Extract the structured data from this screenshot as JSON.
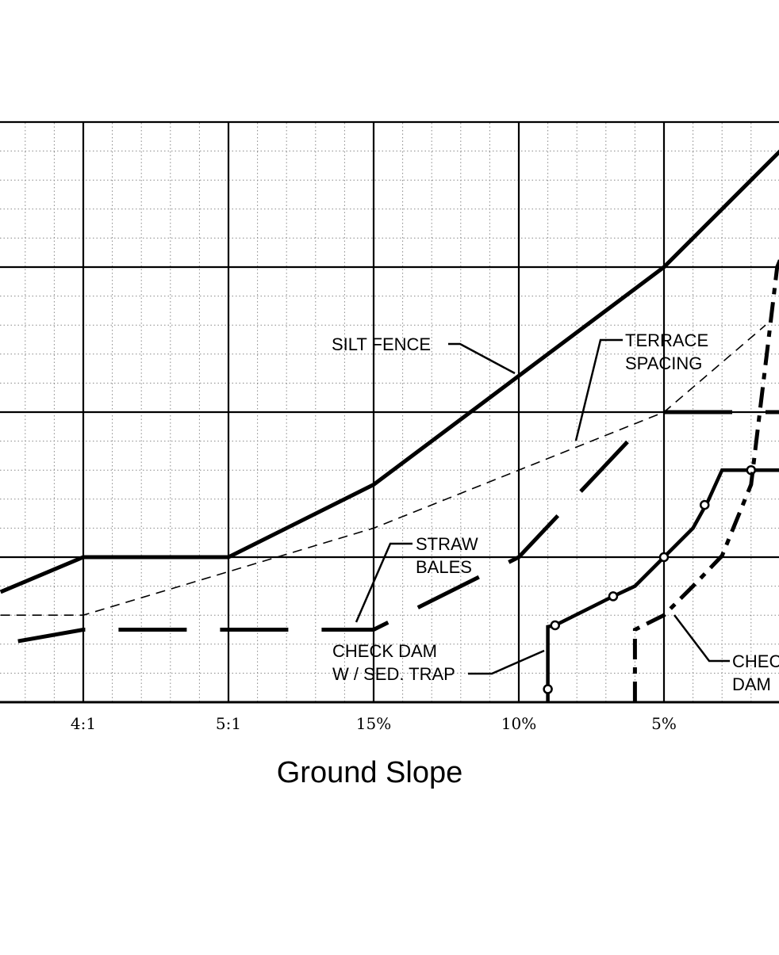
{
  "chart_data": {
    "type": "line",
    "xlabel": "Ground Slope",
    "ylabel": "",
    "categories": [
      "4:1",
      "5:1",
      "15%",
      "10%",
      "5%"
    ],
    "x_positions": [
      1,
      2,
      3,
      4,
      5
    ],
    "xlim": [
      0.43,
      5.8
    ],
    "ylim": [
      0,
      4
    ],
    "grid": true,
    "annotations": [
      {
        "name": "silt-fence",
        "lines": [
          "SILT FENCE"
        ]
      },
      {
        "name": "terrace-spacing",
        "lines": [
          "TERRACE",
          "SPACING"
        ]
      },
      {
        "name": "straw-bales",
        "lines": [
          "STRAW",
          "BALES"
        ]
      },
      {
        "name": "check-dam-sed-trap",
        "lines": [
          "CHECK DAM",
          "W / SED. TRAP"
        ]
      },
      {
        "name": "check-dam",
        "lines": [
          "CHEC",
          "DAM"
        ]
      }
    ],
    "series": [
      {
        "style": "solid-thick",
        "points": [
          [
            0.43,
            0.76
          ],
          [
            1,
            1
          ],
          [
            2,
            1
          ],
          [
            3,
            1.5
          ],
          [
            4,
            2.25
          ],
          [
            5,
            3
          ],
          [
            5.8,
            3.8
          ]
        ]
      },
      {
        "style": "dashed-thin",
        "points": [
          [
            0.43,
            0.6
          ],
          [
            1,
            0.6
          ],
          [
            3,
            1.2
          ],
          [
            5,
            2
          ],
          [
            5.7,
            2.6
          ]
        ]
      },
      {
        "style": "dashed-thick",
        "points": [
          [
            0.55,
            0.42
          ],
          [
            1,
            0.5
          ],
          [
            2,
            0.5
          ],
          [
            3,
            0.5
          ],
          [
            4,
            1
          ],
          [
            4.8,
            1.85
          ]
        ]
      },
      {
        "style": "dashed-thick",
        "points": [
          [
            5,
            2
          ],
          [
            5.8,
            2
          ]
        ]
      },
      {
        "style": "solid-markers",
        "points": [
          [
            4.2,
            0
          ],
          [
            4.2,
            0.52
          ],
          [
            4.25,
            0.53
          ],
          [
            4.65,
            0.73
          ],
          [
            4.8,
            0.8
          ],
          [
            5,
            1
          ],
          [
            5.2,
            1.2
          ],
          [
            5.3,
            1.38
          ],
          [
            5.4,
            1.6
          ],
          [
            5.6,
            1.6
          ],
          [
            5.8,
            1.6
          ]
        ],
        "markers": [
          [
            4.2,
            0.09
          ],
          [
            4.25,
            0.53
          ],
          [
            4.65,
            0.73
          ],
          [
            5,
            1
          ],
          [
            5.28,
            1.36
          ],
          [
            5.6,
            1.6
          ]
        ]
      },
      {
        "style": "dash-dot-thick",
        "points": [
          [
            4.8,
            0
          ],
          [
            4.8,
            0.5
          ],
          [
            5,
            0.6
          ],
          [
            5.2,
            0.8
          ],
          [
            5.4,
            1.01
          ],
          [
            5.6,
            1.5
          ],
          [
            5.66,
            2
          ],
          [
            5.72,
            2.5
          ],
          [
            5.78,
            3
          ],
          [
            5.8,
            3.05
          ]
        ]
      }
    ]
  }
}
